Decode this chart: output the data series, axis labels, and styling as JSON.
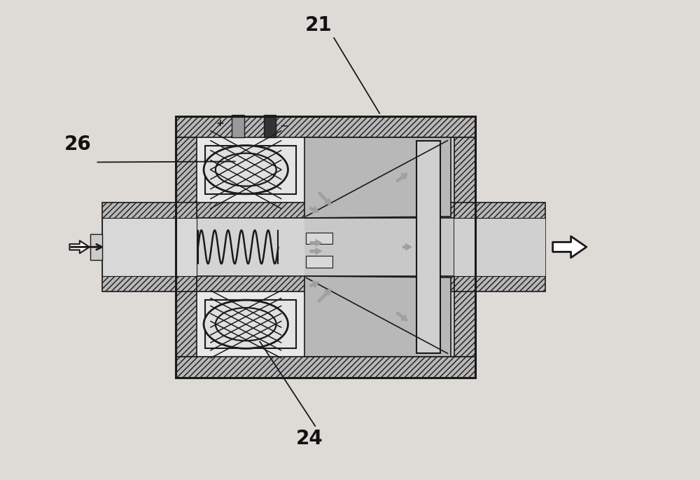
{
  "bg_color": "#dedad6",
  "line_color": "#1a1a1a",
  "hatch_fc": "#b8b8b8",
  "inner_fc": "#e8e8e8",
  "channel_fc": "#c8c8c8",
  "right_fc": "#c0c0c0",
  "cone_fc": "#b0b0b0",
  "tube_fc": "#c8c8c8",
  "coil_fc": "#e0e0e0",
  "label_21": "21",
  "label_24": "24",
  "label_26": "26",
  "figsize": [
    10.0,
    6.85
  ],
  "dpi": 100
}
